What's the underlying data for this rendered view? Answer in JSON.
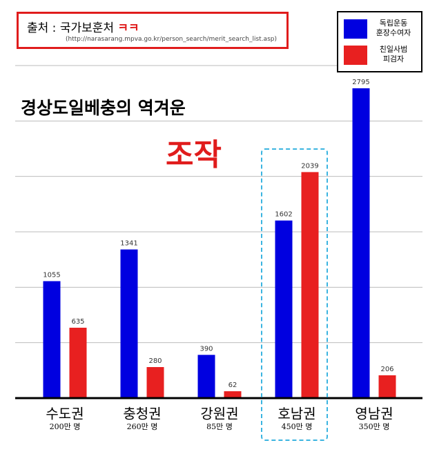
{
  "source": {
    "text": "출처 : 국가보훈처",
    "laugh": "ㅋㅋ",
    "url": "(http://narasarang.mpva.go.kr/person_search/merit_search_list.asp)"
  },
  "chart_data": {
    "type": "bar",
    "annotations": [
      "경상도일베충의 역겨운",
      "조작"
    ],
    "categories": [
      "수도권",
      "충청권",
      "강원권",
      "호남권",
      "영남권"
    ],
    "populations": [
      "200만 명",
      "260만 명",
      "85만 명",
      "450만 명",
      "350만 명"
    ],
    "series": [
      {
        "name": "독립운동 훈장수여자",
        "color": "#0000e0",
        "values": [
          1055,
          1341,
          390,
          1602,
          2795
        ]
      },
      {
        "name": "친일사범 피검자",
        "color": "#e82020",
        "values": [
          635,
          280,
          62,
          2039,
          206
        ]
      }
    ],
    "ylim": [
      0,
      3000
    ],
    "yticks": [
      0,
      500,
      1000,
      1500,
      2000,
      2500,
      3000
    ],
    "grid": true,
    "legend": "upper right"
  }
}
